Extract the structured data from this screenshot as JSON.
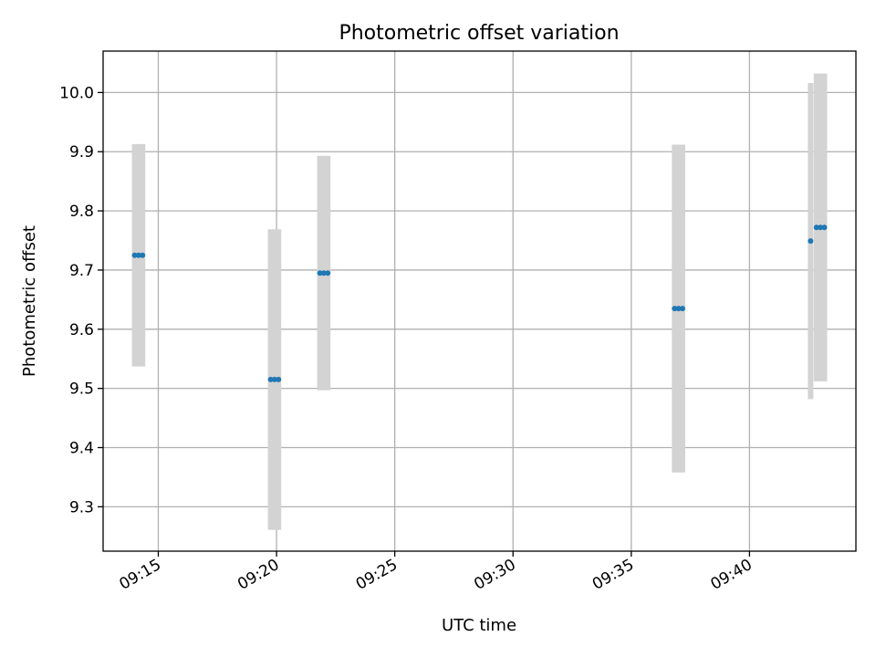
{
  "chart_data": {
    "type": "scatter",
    "title": "Photometric offset variation",
    "xlabel": "UTC time",
    "ylabel": "Photometric offset",
    "xlim": [
      "09:12:40",
      "09:44:30"
    ],
    "ylim": [
      9.225,
      10.07
    ],
    "grid": true,
    "x_ticks": [
      "09:15",
      "09:20",
      "09:25",
      "09:30",
      "09:35",
      "09:40"
    ],
    "y_ticks": [
      "9.3",
      "9.4",
      "9.5",
      "9.6",
      "9.7",
      "9.8",
      "9.9",
      "10.0"
    ],
    "point_color": "#1f77b4",
    "errorbar_color": "#d3d3d3",
    "points": [
      {
        "x": "09:14:00",
        "y": 9.725,
        "yerr": 0.188
      },
      {
        "x": "09:14:10",
        "y": 9.725,
        "yerr": 0.188
      },
      {
        "x": "09:14:20",
        "y": 9.725,
        "yerr": 0.188
      },
      {
        "x": "09:19:45",
        "y": 9.515,
        "yerr": 0.254
      },
      {
        "x": "09:19:55",
        "y": 9.515,
        "yerr": 0.254
      },
      {
        "x": "09:20:05",
        "y": 9.515,
        "yerr": 0.254
      },
      {
        "x": "09:21:50",
        "y": 9.695,
        "yerr": 0.198
      },
      {
        "x": "09:22:00",
        "y": 9.695,
        "yerr": 0.198
      },
      {
        "x": "09:22:10",
        "y": 9.695,
        "yerr": 0.198
      },
      {
        "x": "09:36:50",
        "y": 9.635,
        "yerr": 0.277
      },
      {
        "x": "09:37:00",
        "y": 9.635,
        "yerr": 0.277
      },
      {
        "x": "09:37:10",
        "y": 9.635,
        "yerr": 0.277
      },
      {
        "x": "09:42:35",
        "y": 9.749,
        "yerr": 0.267
      },
      {
        "x": "09:42:50",
        "y": 9.772,
        "yerr": 0.26
      },
      {
        "x": "09:43:00",
        "y": 9.772,
        "yerr": 0.26
      },
      {
        "x": "09:43:10",
        "y": 9.772,
        "yerr": 0.26
      }
    ]
  }
}
